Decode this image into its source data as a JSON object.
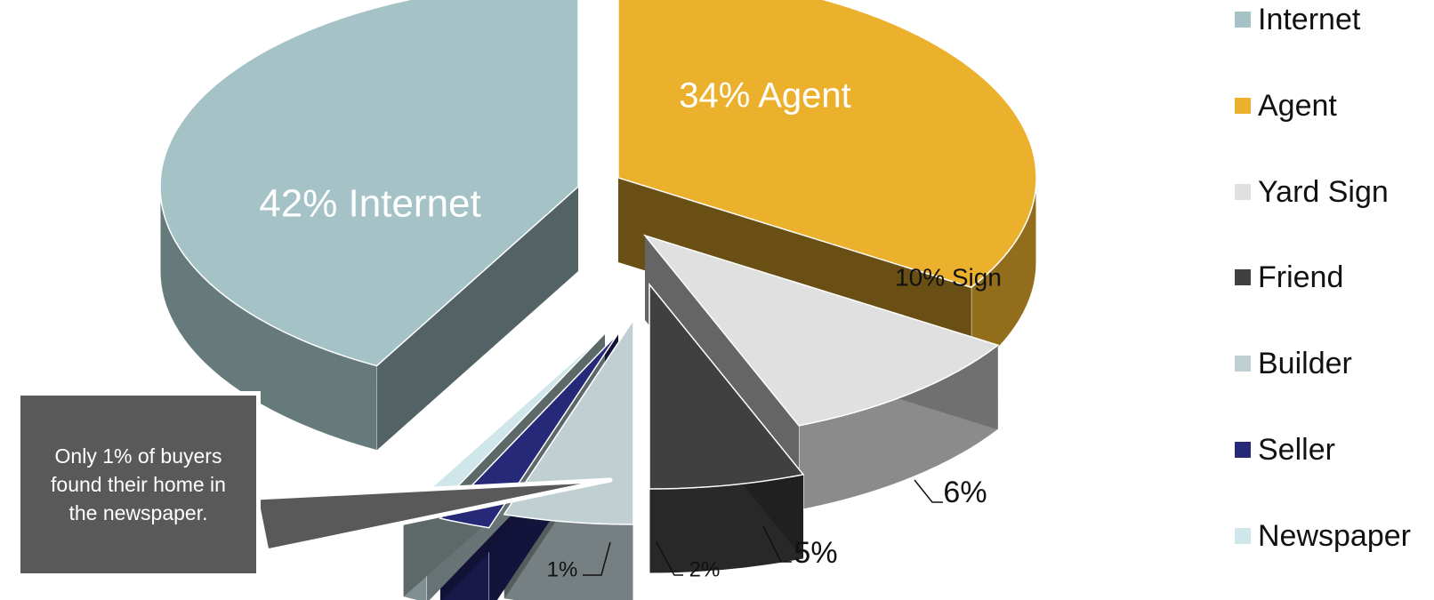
{
  "chart_data": {
    "type": "pie",
    "title": "",
    "slices": [
      {
        "name": "Internet",
        "value": 42,
        "label": "42% Internet",
        "color": "#a5c3c7"
      },
      {
        "name": "Agent",
        "value": 34,
        "label": "34% Agent",
        "color": "#ebb02c"
      },
      {
        "name": "Yard Sign",
        "value": 10,
        "label": "10% Sign",
        "color": "#e0e0e0"
      },
      {
        "name": "Friend",
        "value": 6,
        "label": "6%",
        "color": "#404040"
      },
      {
        "name": "Builder",
        "value": 5,
        "label": "5%",
        "color": "#bfcfd2"
      },
      {
        "name": "Seller",
        "value": 2,
        "label": "2%",
        "color": "#262878"
      },
      {
        "name": "Newspaper",
        "value": 1,
        "label": "1%",
        "color": "#cfe6ea"
      }
    ],
    "legend": {
      "position": "right"
    }
  },
  "callout": {
    "text": "Only 1% of buyers found their home in the newspaper."
  }
}
